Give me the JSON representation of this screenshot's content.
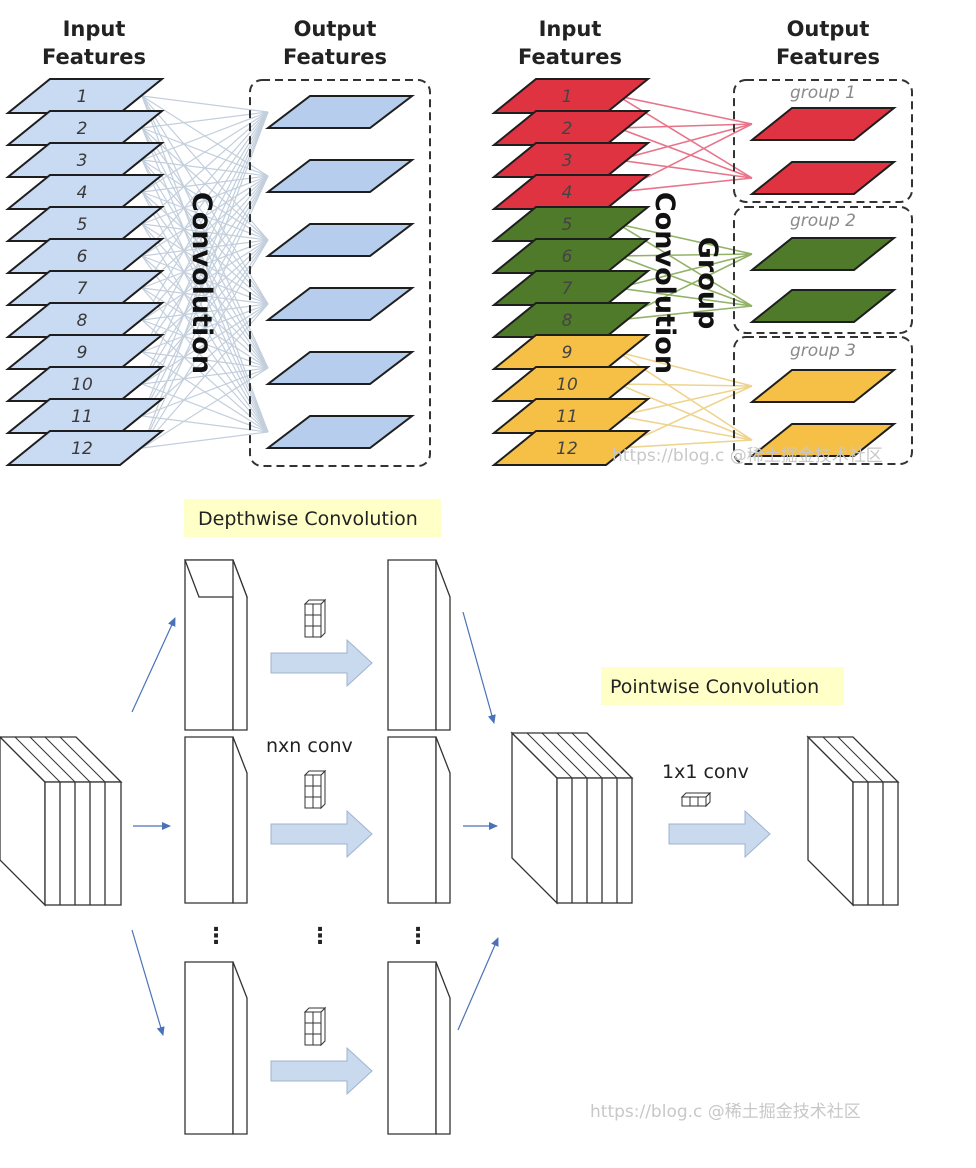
{
  "full_conv": {
    "input_header": [
      "Input",
      "Features"
    ],
    "output_header": [
      "Output",
      "Features"
    ],
    "center_label": "Convolution",
    "input_numbers": [
      "1",
      "2",
      "3",
      "4",
      "5",
      "6",
      "7",
      "8",
      "9",
      "10",
      "11",
      "12"
    ],
    "colors": {
      "input": "#c9daf3",
      "output": "#b6cdee",
      "lines": "#c3cfdd"
    }
  },
  "group_conv": {
    "input_header": [
      "Input",
      "Features"
    ],
    "output_header": [
      "Output",
      "Features"
    ],
    "center_label": [
      "Convolution",
      "Group"
    ],
    "input_numbers": [
      "1",
      "2",
      "3",
      "4",
      "5",
      "6",
      "7",
      "8",
      "9",
      "10",
      "11",
      "12"
    ],
    "groups": [
      {
        "label": "group 1",
        "color": "#e03342",
        "line_color": "#e8748a"
      },
      {
        "label": "group 2",
        "color": "#4e7a2a",
        "line_color": "#92b268"
      },
      {
        "label": "group 3",
        "color": "#f5c045",
        "line_color": "#efd48f"
      }
    ],
    "watermark": "https://blog.c @稀土掘金技术社区"
  },
  "depthwise": {
    "title": "Depthwise Convolution",
    "kernel_label": "nxn conv",
    "dots": "⋮",
    "colors": {
      "title_bg": "#ffffc8",
      "arrow_fill": "#c9d9ee",
      "thin_arrow": "#4a72b8"
    }
  },
  "pointwise": {
    "title": "Pointwise Convolution",
    "kernel_label": "1x1 conv",
    "watermark": "https://blog.c @稀土掘金技术社区"
  }
}
